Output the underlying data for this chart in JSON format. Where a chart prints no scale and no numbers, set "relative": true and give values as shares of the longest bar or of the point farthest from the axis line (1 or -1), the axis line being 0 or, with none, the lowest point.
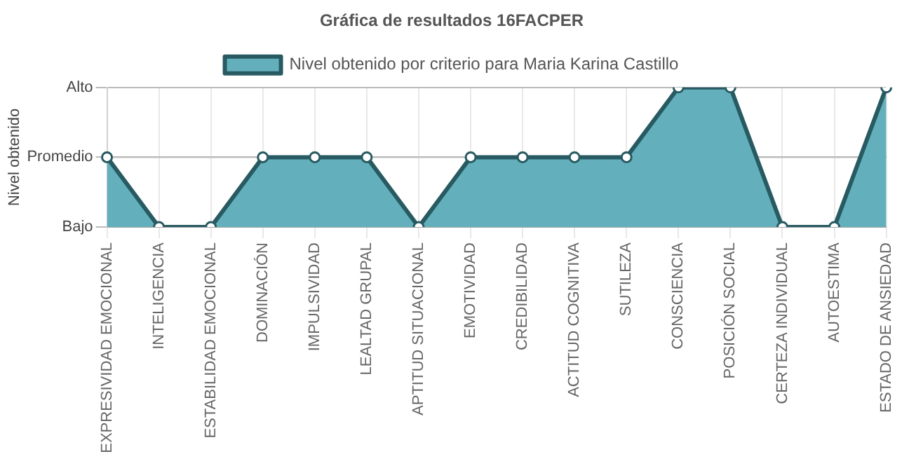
{
  "chart_data": {
    "type": "area",
    "title": "Gráfica de resultados 16FACPER",
    "ylabel": "Nivel obtenido",
    "relative": true,
    "categories": [
      "EXPRESIVIDAD EMOCIONAL",
      "INTELIGENCIA",
      "ESTABILIDAD EMOCIONAL",
      "DOMINACIÓN",
      "IMPULSIVIDAD",
      "LEALTAD GRUPAL",
      "APTITUD SITUACIONAL",
      "EMOTIVIDAD",
      "CREDIBILIDAD",
      "ACTITUD COGNITIVA",
      "SUTILEZA",
      "CONSCIENCIA",
      "POSICIÓN SOCIAL",
      "CERTEZA INDIVIDUAL",
      "AUTOESTIMA",
      "ESTADO DE ANSIEDAD"
    ],
    "series": [
      {
        "name": "Nivel obtenido por criterio para Maria Karina Castillo",
        "color": "#285a62",
        "values": [
          0.5,
          0,
          0,
          0.5,
          0.5,
          0.5,
          0,
          0.5,
          0.5,
          0.5,
          0.5,
          1,
          1,
          0,
          0,
          1
        ]
      }
    ],
    "annotations": [
      "Bajo",
      "Promedio",
      "Alto"
    ],
    "ref_lines": [
      {
        "axis": "y",
        "value": 0.5,
        "color": "#bbbbbb"
      }
    ],
    "grid": true,
    "legend": "top",
    "marker": "circle"
  }
}
